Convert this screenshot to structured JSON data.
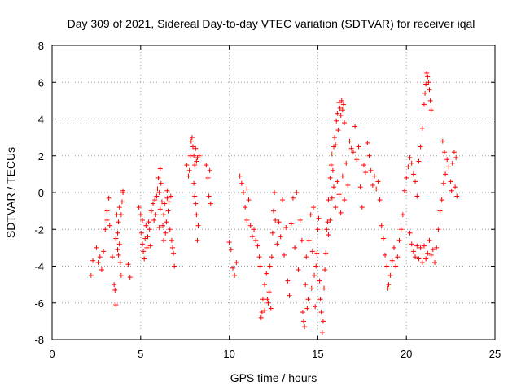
{
  "chart_data": {
    "type": "scatter",
    "title": "Day 309 of 2021, Sidereal Day-to-day VTEC variation (SDTVAR) for receiver iqal",
    "xlabel": "GPS time / hours",
    "ylabel": "SDTVAR / TECUs",
    "xlim": [
      0,
      25
    ],
    "ylim": [
      -8,
      8
    ],
    "xticks": [
      0,
      5,
      10,
      15,
      20,
      25
    ],
    "yticks": [
      -8,
      -6,
      -4,
      -2,
      0,
      2,
      4,
      6,
      8
    ],
    "grid": true,
    "marker": "+",
    "color": "#ff0000",
    "series": [
      {
        "name": "SDTVAR",
        "points": [
          [
            2.2,
            -4.5
          ],
          [
            2.3,
            -3.7
          ],
          [
            2.5,
            -3.0
          ],
          [
            2.6,
            -3.8
          ],
          [
            2.7,
            -3.5
          ],
          [
            2.8,
            -4.2
          ],
          [
            2.9,
            -3.2
          ],
          [
            3.0,
            -2.0
          ],
          [
            3.1,
            -1.5
          ],
          [
            3.1,
            -1.0
          ],
          [
            3.2,
            -0.3
          ],
          [
            3.25,
            -1.8
          ],
          [
            3.4,
            -3.5
          ],
          [
            3.5,
            -5.0
          ],
          [
            3.55,
            -5.3
          ],
          [
            3.6,
            -6.1
          ],
          [
            3.6,
            -2.5
          ],
          [
            3.65,
            -1.2
          ],
          [
            3.7,
            -2.2
          ],
          [
            3.75,
            -1.6
          ],
          [
            3.8,
            -0.8
          ],
          [
            3.8,
            -2.8
          ],
          [
            3.85,
            -3.8
          ],
          [
            3.9,
            -4.5
          ],
          [
            3.9,
            -1.2
          ],
          [
            3.95,
            -0.5
          ],
          [
            4.0,
            0.0
          ],
          [
            4.0,
            0.1
          ],
          [
            3.7,
            -3.1
          ],
          [
            3.75,
            -3.4
          ],
          [
            4.3,
            -3.9
          ],
          [
            4.4,
            -4.6
          ],
          [
            4.9,
            -0.8
          ],
          [
            5.0,
            -1.2
          ],
          [
            5.05,
            -2.2
          ],
          [
            5.1,
            -2.8
          ],
          [
            5.1,
            -1.5
          ],
          [
            5.15,
            -3.2
          ],
          [
            5.2,
            -3.6
          ],
          [
            5.25,
            -2.5
          ],
          [
            5.3,
            -1.8
          ],
          [
            5.35,
            -3.0
          ],
          [
            5.4,
            -2.4
          ],
          [
            5.45,
            -1.6
          ],
          [
            5.5,
            -2.0
          ],
          [
            5.55,
            -2.9
          ],
          [
            5.6,
            -1.0
          ],
          [
            5.7,
            -0.6
          ],
          [
            5.75,
            -1.5
          ],
          [
            5.8,
            -0.4
          ],
          [
            5.85,
            -1.2
          ],
          [
            5.9,
            -0.2
          ],
          [
            5.95,
            0.2
          ],
          [
            6.0,
            0.8
          ],
          [
            6.05,
            0.0
          ],
          [
            6.1,
            -0.9
          ],
          [
            6.1,
            1.3
          ],
          [
            6.15,
            0.5
          ],
          [
            6.2,
            -0.5
          ],
          [
            6.25,
            -1.8
          ],
          [
            6.3,
            -1.2
          ],
          [
            6.35,
            -0.6
          ],
          [
            6.4,
            -2.2
          ],
          [
            6.45,
            -1.6
          ],
          [
            6.5,
            -0.3
          ],
          [
            6.55,
            -1.0
          ],
          [
            6.6,
            -0.5
          ],
          [
            6.65,
            -2.0
          ],
          [
            6.7,
            -0.2
          ],
          [
            6.75,
            -2.6
          ],
          [
            6.8,
            -3.0
          ],
          [
            6.85,
            -3.3
          ],
          [
            6.9,
            -4.0
          ],
          [
            6.5,
            0.1
          ],
          [
            6.3,
            -2.6
          ],
          [
            6.05,
            -1.9
          ],
          [
            7.6,
            1.5
          ],
          [
            7.7,
            0.9
          ],
          [
            7.75,
            1.2
          ],
          [
            7.8,
            2.0
          ],
          [
            7.85,
            2.8
          ],
          [
            7.9,
            3.0
          ],
          [
            7.95,
            2.5
          ],
          [
            8.0,
            2.0
          ],
          [
            8.05,
            1.5
          ],
          [
            8.1,
            2.4
          ],
          [
            8.15,
            1.7
          ],
          [
            8.2,
            1.9
          ],
          [
            8.0,
            0.5
          ],
          [
            8.05,
            -0.2
          ],
          [
            8.1,
            -0.6
          ],
          [
            8.15,
            -1.2
          ],
          [
            8.2,
            -2.6
          ],
          [
            8.25,
            -1.8
          ],
          [
            8.3,
            2.0
          ],
          [
            8.7,
            1.5
          ],
          [
            8.8,
            0.8
          ],
          [
            8.85,
            -0.2
          ],
          [
            8.9,
            1.2
          ],
          [
            8.95,
            -0.6
          ],
          [
            10.0,
            -2.7
          ],
          [
            10.1,
            -3.1
          ],
          [
            10.2,
            -4.1
          ],
          [
            10.3,
            -4.5
          ],
          [
            10.4,
            -3.8
          ],
          [
            10.6,
            0.9
          ],
          [
            10.7,
            0.5
          ],
          [
            10.8,
            0.0
          ],
          [
            10.9,
            -0.8
          ],
          [
            11.0,
            -1.5
          ],
          [
            11.0,
            0.2
          ],
          [
            11.1,
            -0.4
          ],
          [
            11.2,
            -1.8
          ],
          [
            11.3,
            -2.4
          ],
          [
            11.4,
            -2.0
          ],
          [
            11.5,
            -2.6
          ],
          [
            11.6,
            -2.9
          ],
          [
            11.7,
            -3.5
          ],
          [
            11.75,
            -4.0
          ],
          [
            11.8,
            -6.8
          ],
          [
            11.85,
            -6.5
          ],
          [
            11.9,
            -5.8
          ],
          [
            12.0,
            -5.0
          ],
          [
            12.0,
            -6.4
          ],
          [
            12.1,
            -4.4
          ],
          [
            12.15,
            -5.8
          ],
          [
            12.2,
            -6.0
          ],
          [
            12.25,
            -5.4
          ],
          [
            12.3,
            -4.0
          ],
          [
            12.35,
            -6.3
          ],
          [
            12.4,
            -3.5
          ],
          [
            12.45,
            -2.2
          ],
          [
            12.5,
            -1.0
          ],
          [
            12.55,
            0.0
          ],
          [
            12.6,
            -1.5
          ],
          [
            12.7,
            -2.8
          ],
          [
            12.8,
            -1.6
          ],
          [
            12.9,
            -2.4
          ],
          [
            13.0,
            -0.4
          ],
          [
            13.1,
            -3.4
          ],
          [
            13.2,
            -1.9
          ],
          [
            13.3,
            -4.8
          ],
          [
            13.4,
            -5.6
          ],
          [
            13.5,
            -1.7
          ],
          [
            13.6,
            -0.3
          ],
          [
            13.7,
            -3.0
          ],
          [
            13.8,
            0.0
          ],
          [
            13.9,
            -4.2
          ],
          [
            14.0,
            -1.5
          ],
          [
            14.1,
            -2.6
          ],
          [
            14.15,
            -6.5
          ],
          [
            14.2,
            -7.0
          ],
          [
            14.25,
            -7.3
          ],
          [
            14.3,
            -5.0
          ],
          [
            14.35,
            -3.5
          ],
          [
            14.4,
            -6.3
          ],
          [
            14.45,
            -5.8
          ],
          [
            14.5,
            -2.6
          ],
          [
            14.6,
            -1.2
          ],
          [
            14.65,
            -5.2
          ],
          [
            14.7,
            -3.2
          ],
          [
            14.75,
            -0.8
          ],
          [
            14.8,
            -4.5
          ],
          [
            14.85,
            -6.2
          ],
          [
            14.9,
            -4.0
          ],
          [
            14.95,
            -3.3
          ],
          [
            15.0,
            -2.0
          ],
          [
            15.05,
            -1.4
          ],
          [
            15.1,
            -4.8
          ],
          [
            15.15,
            -5.8
          ],
          [
            15.2,
            -6.5
          ],
          [
            15.25,
            -7.6
          ],
          [
            15.3,
            -7.0
          ],
          [
            15.35,
            -5.2
          ],
          [
            15.4,
            -4.2
          ],
          [
            15.45,
            -3.3
          ],
          [
            15.5,
            -2.0
          ],
          [
            15.55,
            -1.6
          ],
          [
            15.6,
            -0.4
          ],
          [
            15.7,
            0.8
          ],
          [
            15.75,
            1.5
          ],
          [
            15.8,
            2.1
          ],
          [
            15.85,
            1.2
          ],
          [
            15.9,
            2.5
          ],
          [
            15.95,
            3.0
          ],
          [
            16.0,
            2.6
          ],
          [
            16.05,
            3.9
          ],
          [
            16.1,
            4.3
          ],
          [
            16.15,
            3.4
          ],
          [
            16.2,
            4.9
          ],
          [
            16.25,
            4.6
          ],
          [
            16.3,
            4.2
          ],
          [
            16.35,
            5.0
          ],
          [
            16.4,
            4.5
          ],
          [
            16.45,
            4.8
          ],
          [
            16.5,
            3.8
          ],
          [
            15.6,
            -2.3
          ],
          [
            15.7,
            -1.5
          ],
          [
            15.8,
            -0.3
          ],
          [
            15.9,
            0.3
          ],
          [
            16.0,
            -0.8
          ],
          [
            16.1,
            0.6
          ],
          [
            16.2,
            -0.1
          ],
          [
            16.3,
            -1.1
          ],
          [
            16.4,
            0.9
          ],
          [
            16.5,
            -0.4
          ],
          [
            16.6,
            1.6
          ],
          [
            16.7,
            0.4
          ],
          [
            16.8,
            2.8
          ],
          [
            16.9,
            2.4
          ],
          [
            17.0,
            2.2
          ],
          [
            17.1,
            3.6
          ],
          [
            17.2,
            1.8
          ],
          [
            17.3,
            2.5
          ],
          [
            17.4,
            0.3
          ],
          [
            17.5,
            -0.8
          ],
          [
            17.6,
            1.5
          ],
          [
            17.7,
            1.1
          ],
          [
            17.8,
            2.7
          ],
          [
            17.9,
            2.0
          ],
          [
            18.0,
            1.2
          ],
          [
            18.1,
            0.4
          ],
          [
            18.2,
            0.9
          ],
          [
            18.3,
            0.2
          ],
          [
            18.4,
            0.6
          ],
          [
            18.5,
            -0.4
          ],
          [
            18.6,
            -1.8
          ],
          [
            18.7,
            -2.5
          ],
          [
            18.8,
            -3.4
          ],
          [
            18.9,
            -4.0
          ],
          [
            18.95,
            -5.2
          ],
          [
            19.0,
            -5.0
          ],
          [
            19.1,
            -4.5
          ],
          [
            19.2,
            -3.7
          ],
          [
            19.3,
            -3.0
          ],
          [
            19.4,
            -4.0
          ],
          [
            19.5,
            -3.5
          ],
          [
            19.6,
            -2.6
          ],
          [
            19.7,
            -2.0
          ],
          [
            19.8,
            -1.2
          ],
          [
            19.9,
            0.1
          ],
          [
            20.0,
            0.8
          ],
          [
            20.1,
            1.4
          ],
          [
            20.2,
            1.9
          ],
          [
            20.3,
            1.6
          ],
          [
            20.4,
            1.0
          ],
          [
            20.5,
            0.6
          ],
          [
            20.6,
            -0.2
          ],
          [
            20.7,
            1.7
          ],
          [
            20.8,
            2.5
          ],
          [
            20.9,
            3.5
          ],
          [
            21.0,
            4.8
          ],
          [
            21.05,
            5.4
          ],
          [
            21.1,
            5.9
          ],
          [
            21.15,
            6.5
          ],
          [
            21.2,
            6.3
          ],
          [
            21.25,
            6.0
          ],
          [
            21.3,
            5.6
          ],
          [
            21.35,
            5.0
          ],
          [
            21.4,
            4.5
          ],
          [
            20.2,
            -2.2
          ],
          [
            20.3,
            -2.8
          ],
          [
            20.4,
            -3.2
          ],
          [
            20.5,
            -3.5
          ],
          [
            20.6,
            -2.9
          ],
          [
            20.7,
            -3.6
          ],
          [
            20.8,
            -3.0
          ],
          [
            20.9,
            -3.8
          ],
          [
            21.0,
            -2.9
          ],
          [
            21.1,
            -3.6
          ],
          [
            21.2,
            -3.3
          ],
          [
            21.3,
            -2.6
          ],
          [
            21.4,
            -3.4
          ],
          [
            21.5,
            -3.1
          ],
          [
            21.6,
            -3.8
          ],
          [
            21.7,
            -3.0
          ],
          [
            21.8,
            -2.0
          ],
          [
            21.9,
            -1.0
          ],
          [
            22.0,
            -0.4
          ],
          [
            22.05,
            2.8
          ],
          [
            22.1,
            0.5
          ],
          [
            22.15,
            2.2
          ],
          [
            22.2,
            1.0
          ],
          [
            22.3,
            1.8
          ],
          [
            22.4,
            1.4
          ],
          [
            22.5,
            0.6
          ],
          [
            22.55,
            0.1
          ],
          [
            22.6,
            1.6
          ],
          [
            22.7,
            2.2
          ],
          [
            22.75,
            0.3
          ],
          [
            22.8,
            1.9
          ],
          [
            22.85,
            -0.2
          ]
        ]
      }
    ]
  }
}
